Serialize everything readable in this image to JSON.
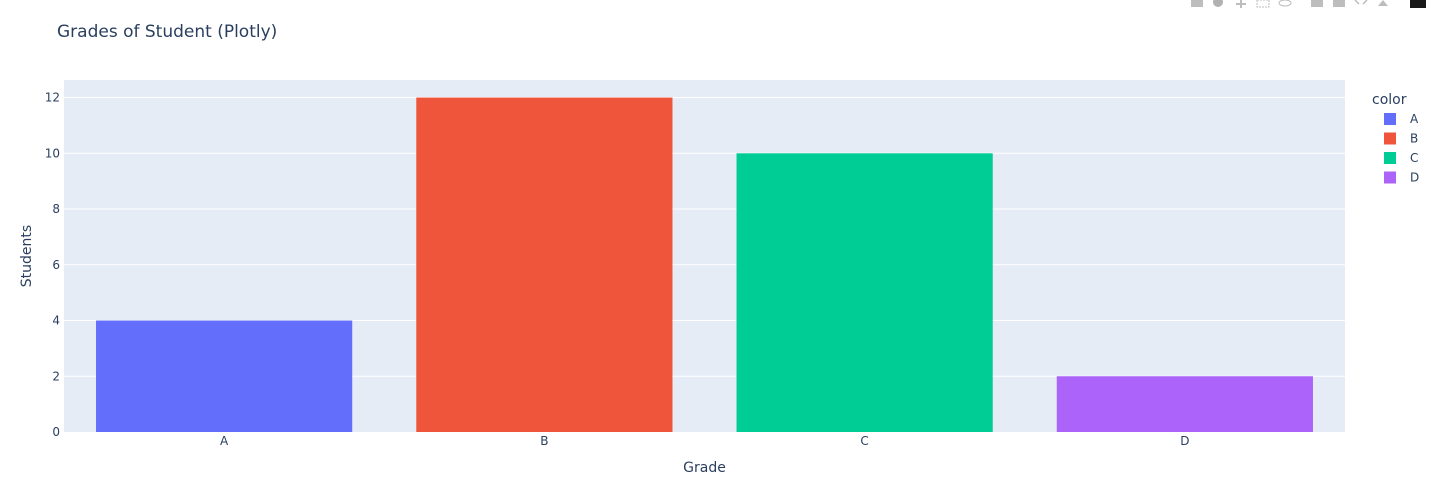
{
  "chart_data": {
    "type": "bar",
    "title": "Grades of Student (Plotly)",
    "xlabel": "Grade",
    "ylabel": "Students",
    "categories": [
      "A",
      "B",
      "C",
      "D"
    ],
    "values": [
      4,
      12,
      10,
      2
    ],
    "colors": [
      "#636efa",
      "#ef553b",
      "#00cc96",
      "#ab63fa"
    ],
    "ylim": [
      0,
      12.63
    ],
    "yticks": [
      0,
      2,
      4,
      6,
      8,
      10,
      12
    ],
    "grid": true,
    "plot_bg": "#e5ecf6",
    "legend": {
      "title": "color",
      "placement": "right",
      "entries": [
        "A",
        "B",
        "C",
        "D"
      ]
    }
  },
  "modebar": {
    "icons": [
      "camera-icon",
      "zoom-icon",
      "pan-icon",
      "box-select-icon",
      "lasso-icon",
      "zoom-in-icon",
      "zoom-out-icon",
      "autoscale-icon",
      "home-icon",
      "plotly-logo-icon"
    ]
  }
}
